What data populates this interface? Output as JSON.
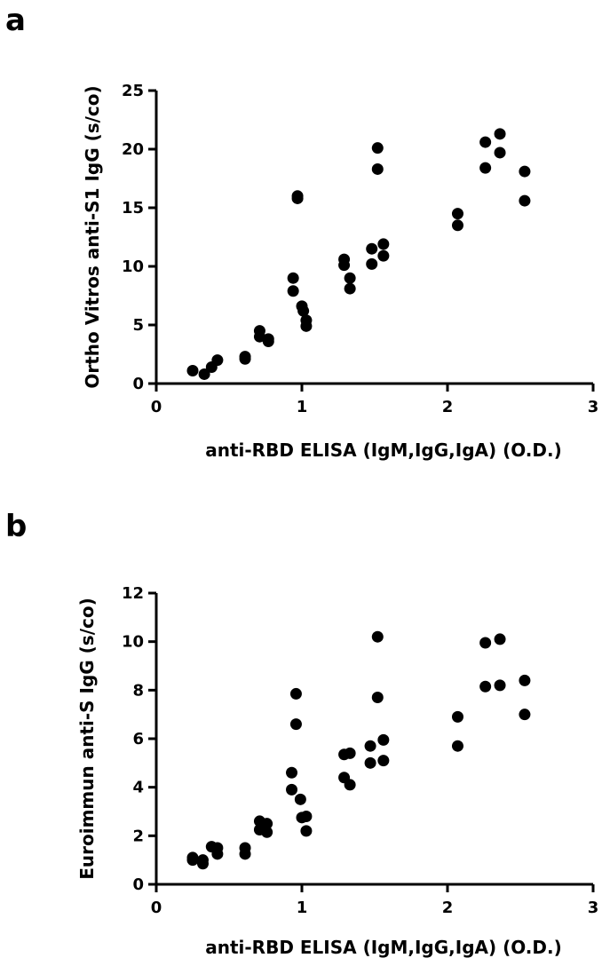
{
  "chart_data": [
    {
      "type": "scatter",
      "panel": "a",
      "xlabel": "anti-RBD ELISA (IgM,IgG,IgA) (O.D.)",
      "ylabel": "Ortho Vitros anti-S1 IgG (s/co)",
      "xlim": [
        0,
        3
      ],
      "ylim": [
        0,
        25
      ],
      "xticks": [
        0,
        1,
        2,
        3
      ],
      "yticks": [
        0,
        5,
        10,
        15,
        20,
        25
      ],
      "grid": false,
      "points": [
        {
          "x": 0.25,
          "y": 1.1
        },
        {
          "x": 0.33,
          "y": 0.8
        },
        {
          "x": 0.38,
          "y": 1.4
        },
        {
          "x": 0.42,
          "y": 2.0
        },
        {
          "x": 0.61,
          "y": 2.3
        },
        {
          "x": 0.61,
          "y": 2.1
        },
        {
          "x": 0.71,
          "y": 4.5
        },
        {
          "x": 0.71,
          "y": 4.0
        },
        {
          "x": 0.77,
          "y": 3.8
        },
        {
          "x": 0.77,
          "y": 3.6
        },
        {
          "x": 0.94,
          "y": 9.0
        },
        {
          "x": 0.94,
          "y": 7.9
        },
        {
          "x": 0.97,
          "y": 16.0
        },
        {
          "x": 0.97,
          "y": 15.8
        },
        {
          "x": 1.0,
          "y": 6.6
        },
        {
          "x": 1.01,
          "y": 6.2
        },
        {
          "x": 1.03,
          "y": 5.4
        },
        {
          "x": 1.03,
          "y": 4.9
        },
        {
          "x": 1.29,
          "y": 10.6
        },
        {
          "x": 1.29,
          "y": 10.1
        },
        {
          "x": 1.33,
          "y": 9.0
        },
        {
          "x": 1.33,
          "y": 8.1
        },
        {
          "x": 1.48,
          "y": 11.5
        },
        {
          "x": 1.48,
          "y": 10.2
        },
        {
          "x": 1.52,
          "y": 20.1
        },
        {
          "x": 1.52,
          "y": 18.3
        },
        {
          "x": 1.56,
          "y": 11.9
        },
        {
          "x": 1.56,
          "y": 10.9
        },
        {
          "x": 2.07,
          "y": 14.5
        },
        {
          "x": 2.07,
          "y": 13.5
        },
        {
          "x": 2.26,
          "y": 20.6
        },
        {
          "x": 2.26,
          "y": 18.4
        },
        {
          "x": 2.36,
          "y": 21.3
        },
        {
          "x": 2.36,
          "y": 19.7
        },
        {
          "x": 2.53,
          "y": 18.1
        },
        {
          "x": 2.53,
          "y": 15.6
        }
      ]
    },
    {
      "type": "scatter",
      "panel": "b",
      "xlabel": "anti-RBD ELISA (IgM,IgG,IgA) (O.D.)",
      "ylabel": "Euroimmun anti-S IgG (s/co)",
      "xlim": [
        0,
        3
      ],
      "ylim": [
        0,
        12
      ],
      "xticks": [
        0,
        1,
        2,
        3
      ],
      "yticks": [
        0,
        2,
        4,
        6,
        8,
        10,
        12
      ],
      "grid": false,
      "points": [
        {
          "x": 0.25,
          "y": 1.1
        },
        {
          "x": 0.25,
          "y": 1.0
        },
        {
          "x": 0.32,
          "y": 1.0
        },
        {
          "x": 0.32,
          "y": 0.85
        },
        {
          "x": 0.38,
          "y": 1.55
        },
        {
          "x": 0.42,
          "y": 1.5
        },
        {
          "x": 0.42,
          "y": 1.25
        },
        {
          "x": 0.61,
          "y": 1.5
        },
        {
          "x": 0.61,
          "y": 1.25
        },
        {
          "x": 0.71,
          "y": 2.6
        },
        {
          "x": 0.71,
          "y": 2.25
        },
        {
          "x": 0.76,
          "y": 2.5
        },
        {
          "x": 0.76,
          "y": 2.15
        },
        {
          "x": 0.93,
          "y": 4.6
        },
        {
          "x": 0.93,
          "y": 3.9
        },
        {
          "x": 0.96,
          "y": 7.85
        },
        {
          "x": 0.96,
          "y": 6.6
        },
        {
          "x": 0.99,
          "y": 3.5
        },
        {
          "x": 1.0,
          "y": 2.75
        },
        {
          "x": 1.03,
          "y": 2.8
        },
        {
          "x": 1.03,
          "y": 2.2
        },
        {
          "x": 1.29,
          "y": 5.35
        },
        {
          "x": 1.29,
          "y": 4.4
        },
        {
          "x": 1.33,
          "y": 5.4
        },
        {
          "x": 1.33,
          "y": 4.1
        },
        {
          "x": 1.47,
          "y": 5.7
        },
        {
          "x": 1.47,
          "y": 5.0
        },
        {
          "x": 1.52,
          "y": 10.2
        },
        {
          "x": 1.52,
          "y": 7.7
        },
        {
          "x": 1.56,
          "y": 5.95
        },
        {
          "x": 1.56,
          "y": 5.1
        },
        {
          "x": 2.07,
          "y": 6.9
        },
        {
          "x": 2.07,
          "y": 5.7
        },
        {
          "x": 2.26,
          "y": 9.95
        },
        {
          "x": 2.26,
          "y": 8.15
        },
        {
          "x": 2.36,
          "y": 10.1
        },
        {
          "x": 2.36,
          "y": 8.2
        },
        {
          "x": 2.53,
          "y": 8.4
        },
        {
          "x": 2.53,
          "y": 7.0
        }
      ]
    }
  ]
}
